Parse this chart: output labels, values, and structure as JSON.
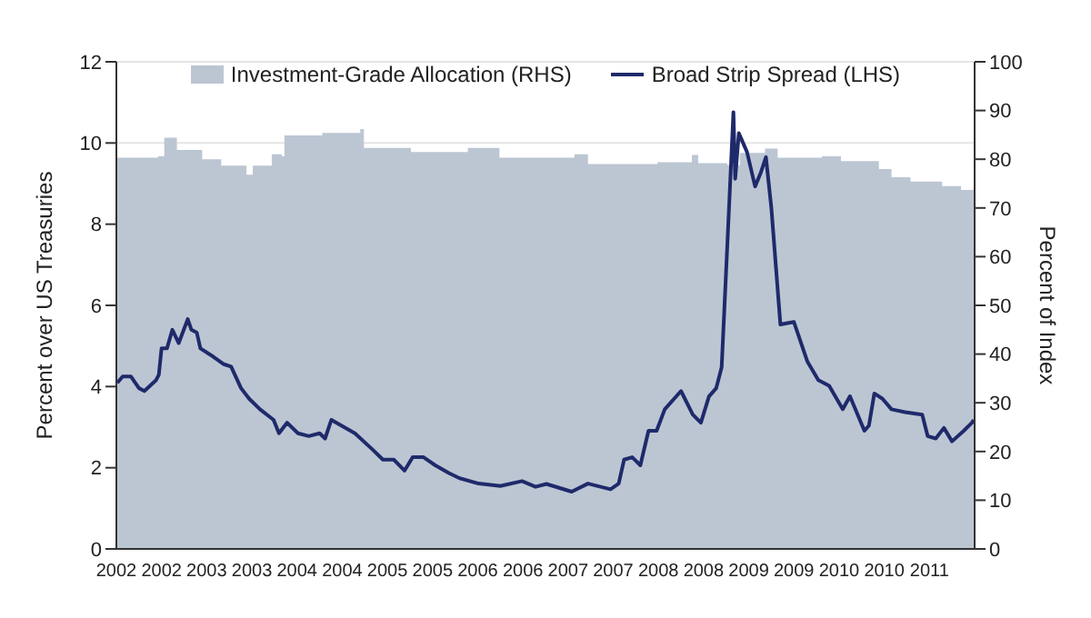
{
  "chart_data": {
    "type": "line",
    "ylabel": "Percent over US Treasuries",
    "y2label": "Percent of Index",
    "xlim": [
      2002,
      2011.5
    ],
    "xticks": [
      {
        "value": 2002,
        "label": "2002"
      },
      {
        "value": 2002.5,
        "label": "2002"
      },
      {
        "value": 2003,
        "label": "2003"
      },
      {
        "value": 2003.5,
        "label": "2003"
      },
      {
        "value": 2004,
        "label": "2004"
      },
      {
        "value": 2004.5,
        "label": "2004"
      },
      {
        "value": 2005,
        "label": "2005"
      },
      {
        "value": 2005.5,
        "label": "2005"
      },
      {
        "value": 2006,
        "label": "2006"
      },
      {
        "value": 2006.5,
        "label": "2006"
      },
      {
        "value": 2007,
        "label": "2007"
      },
      {
        "value": 2007.5,
        "label": "2007"
      },
      {
        "value": 2008,
        "label": "2008"
      },
      {
        "value": 2008.5,
        "label": "2008"
      },
      {
        "value": 2009,
        "label": "2009"
      },
      {
        "value": 2009.5,
        "label": "2009"
      },
      {
        "value": 2010,
        "label": "2010"
      },
      {
        "value": 2010.5,
        "label": "2010"
      },
      {
        "value": 2011,
        "label": "2011"
      }
    ],
    "ylim": [
      0,
      12
    ],
    "yticks": [
      0,
      2,
      4,
      6,
      8,
      10,
      12
    ],
    "y2lim": [
      0,
      100
    ],
    "y2ticks": [
      0,
      10,
      20,
      30,
      40,
      50,
      60,
      70,
      80,
      90,
      100
    ],
    "grid": "y",
    "legend": "top",
    "series": [
      {
        "name": "Investment-Grade Allocation (RHS)",
        "type": "area",
        "axis": "y2",
        "color": "#bcc6d3",
        "x": [
          2002,
          2002.46,
          2002.53,
          2002.67,
          2002.95,
          2003.16,
          2003.44,
          2003.51,
          2003.72,
          2003.83,
          2003.86,
          2004.28,
          2004.7,
          2004.74,
          2005.26,
          2005.89,
          2006.24,
          2007.07,
          2007.22,
          2007.99,
          2008.37,
          2008.44,
          2008.76,
          2008.9,
          2009.18,
          2009.32,
          2009.81,
          2010.02,
          2010.44,
          2010.58,
          2010.79,
          2011.14,
          2011.35,
          2011.5
        ],
        "values": [
          80.3,
          80.6,
          84.4,
          81.9,
          80,
          78.7,
          76.8,
          78.7,
          81,
          80.6,
          84.9,
          85.4,
          86.2,
          82.3,
          81.5,
          82.3,
          80.3,
          81,
          79,
          79.4,
          80.9,
          79.2,
          78.8,
          81.3,
          82.2,
          80.3,
          80.6,
          79.6,
          78,
          76.3,
          75.4,
          74.5,
          73.7,
          73.2
        ]
      },
      {
        "name": "Broad Strip Spread (LHS)",
        "color": "#1f2a6b",
        "x": [
          2002.01,
          2002.07,
          2002.16,
          2002.25,
          2002.31,
          2002.44,
          2002.47,
          2002.5,
          2002.56,
          2002.62,
          2002.69,
          2002.79,
          2002.83,
          2002.89,
          2002.93,
          2003.07,
          2003.19,
          2003.27,
          2003.38,
          2003.47,
          2003.59,
          2003.74,
          2003.8,
          2003.89,
          2004.01,
          2004.13,
          2004.25,
          2004.31,
          2004.38,
          2004.49,
          2004.64,
          2004.83,
          2004.95,
          2005.07,
          2005.19,
          2005.28,
          2005.4,
          2005.53,
          2005.68,
          2005.8,
          2006.01,
          2006.25,
          2006.49,
          2006.64,
          2006.76,
          2007.04,
          2007.22,
          2007.47,
          2007.56,
          2007.62,
          2007.71,
          2007.8,
          2007.89,
          2007.98,
          2008.07,
          2008.25,
          2008.38,
          2008.47,
          2008.56,
          2008.64,
          2008.7,
          2008.76,
          2008.83,
          2008.85,
          2008.89,
          2008.98,
          2009.07,
          2009.13,
          2009.19,
          2009.25,
          2009.35,
          2009.5,
          2009.65,
          2009.77,
          2009.89,
          2010.04,
          2010.12,
          2010.28,
          2010.33,
          2010.39,
          2010.48,
          2010.58,
          2010.73,
          2010.92,
          2010.98,
          2011.07,
          2011.16,
          2011.25,
          2011.38,
          2011.47,
          2011.49
        ],
        "values": [
          4.09,
          4.25,
          4.25,
          3.96,
          3.89,
          4.16,
          4.29,
          4.94,
          4.94,
          5.4,
          5.07,
          5.66,
          5.4,
          5.33,
          4.94,
          4.74,
          4.55,
          4.49,
          3.96,
          3.7,
          3.44,
          3.18,
          2.85,
          3.11,
          2.85,
          2.78,
          2.85,
          2.72,
          3.18,
          3.04,
          2.85,
          2.46,
          2.2,
          2.2,
          1.93,
          2.26,
          2.26,
          2.06,
          1.87,
          1.74,
          1.61,
          1.55,
          1.67,
          1.53,
          1.6,
          1.41,
          1.61,
          1.47,
          1.61,
          2.2,
          2.26,
          2.06,
          2.91,
          2.91,
          3.44,
          3.89,
          3.31,
          3.11,
          3.76,
          3.96,
          4.48,
          7.36,
          10.76,
          9.12,
          10.24,
          9.78,
          8.93,
          9.25,
          9.65,
          8.4,
          5.53,
          5.59,
          4.61,
          4.16,
          4.02,
          3.44,
          3.76,
          2.91,
          3.04,
          3.83,
          3.7,
          3.44,
          3.37,
          3.31,
          2.78,
          2.72,
          2.98,
          2.65,
          2.91,
          3.11,
          3.18
        ]
      }
    ]
  }
}
